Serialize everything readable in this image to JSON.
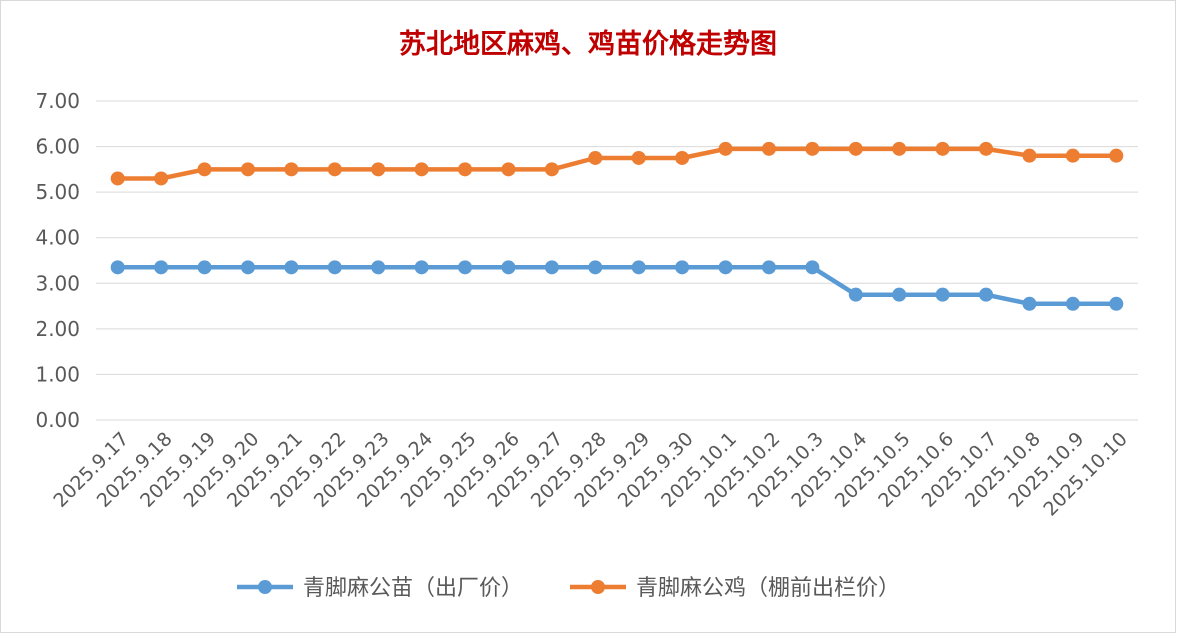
{
  "chart_data": {
    "type": "line",
    "title": "苏北地区麻鸡、鸡苗价格走势图",
    "xlabel": "",
    "ylabel": "",
    "ylim": [
      0,
      7
    ],
    "yticks": [
      "0.00",
      "1.00",
      "2.00",
      "3.00",
      "4.00",
      "5.00",
      "6.00",
      "7.00"
    ],
    "grid": true,
    "legend_position": "bottom",
    "categories": [
      "2025.9.17",
      "2025.9.18",
      "2025.9.19",
      "2025.9.20",
      "2025.9.21",
      "2025.9.22",
      "2025.9.23",
      "2025.9.24",
      "2025.9.25",
      "2025.9.26",
      "2025.9.27",
      "2025.9.28",
      "2025.9.29",
      "2025.9.30",
      "2025.10.1",
      "2025.10.2",
      "2025.10.3",
      "2025.10.4",
      "2025.10.5",
      "2025.10.6",
      "2025.10.7",
      "2025.10.8",
      "2025.10.9",
      "2025.10.10"
    ],
    "series": [
      {
        "name": "青脚麻公苗（出厂价）",
        "color": "#5B9BD5",
        "values": [
          3.35,
          3.35,
          3.35,
          3.35,
          3.35,
          3.35,
          3.35,
          3.35,
          3.35,
          3.35,
          3.35,
          3.35,
          3.35,
          3.35,
          3.35,
          3.35,
          3.35,
          2.75,
          2.75,
          2.75,
          2.75,
          2.55,
          2.55,
          2.55
        ]
      },
      {
        "name": "青脚麻公鸡（棚前出栏价）",
        "color": "#ED7D31",
        "values": [
          5.3,
          5.3,
          5.5,
          5.5,
          5.5,
          5.5,
          5.5,
          5.5,
          5.5,
          5.5,
          5.5,
          5.75,
          5.75,
          5.75,
          5.95,
          5.95,
          5.95,
          5.95,
          5.95,
          5.95,
          5.95,
          5.8,
          5.8,
          5.8
        ]
      }
    ],
    "title_color": "#C00000",
    "axis_text_color": "#595959",
    "gridline_color": "#D9D9D9"
  }
}
